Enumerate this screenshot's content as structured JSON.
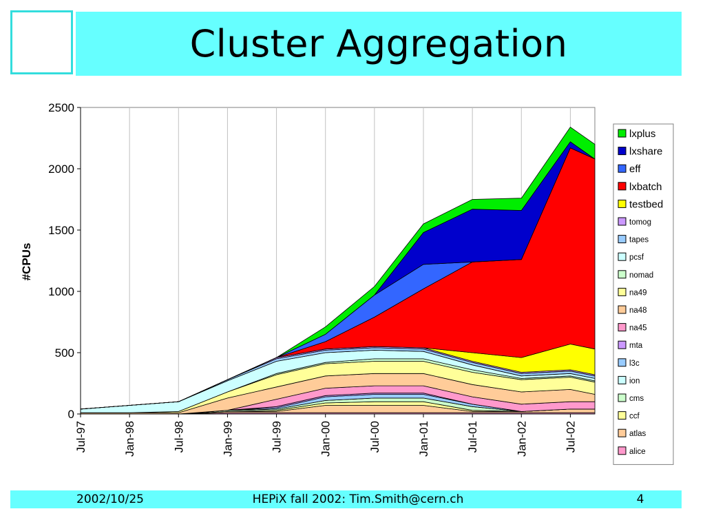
{
  "slide": {
    "title": "Cluster Aggregation",
    "footer_date": "2002/10/25",
    "footer_center": "HEPiX fall 2002: Tim.Smith@cern.ch",
    "page_number": "4"
  },
  "chart_data": {
    "type": "area",
    "stacked": true,
    "title": "",
    "xlabel": "",
    "ylabel": "#CPUs",
    "ylim": [
      0,
      2500
    ],
    "yticks": [
      0,
      500,
      1000,
      1500,
      2000,
      2500
    ],
    "xlim": [
      "1997-07",
      "2002-10"
    ],
    "xtick_labels": [
      "Jul-97",
      "Jan-98",
      "Jul-98",
      "Jan-99",
      "Jul-99",
      "Jan-00",
      "Jul-00",
      "Jan-01",
      "Jul-01",
      "Jan-02",
      "Jul-02"
    ],
    "grid": "vertical",
    "legend_position": "right",
    "x": [
      "1997-07",
      "1998-01",
      "1998-07",
      "1999-01",
      "1999-07",
      "2000-01",
      "2000-07",
      "2001-01",
      "2001-07",
      "2002-01",
      "2002-07",
      "2002-10"
    ],
    "series": [
      {
        "name": "alice",
        "color": "#ff99cc",
        "values": [
          0,
          0,
          0,
          10,
          10,
          10,
          10,
          10,
          10,
          10,
          10,
          10
        ]
      },
      {
        "name": "atlas",
        "color": "#ffcc99",
        "values": [
          0,
          0,
          0,
          10,
          10,
          60,
          60,
          60,
          10,
          10,
          30,
          30
        ]
      },
      {
        "name": "ccf",
        "color": "#ffff99",
        "values": [
          0,
          0,
          0,
          0,
          10,
          20,
          30,
          30,
          10,
          0,
          0,
          0
        ]
      },
      {
        "name": "cms",
        "color": "#ccffcc",
        "values": [
          0,
          0,
          0,
          10,
          10,
          20,
          30,
          30,
          30,
          0,
          0,
          0
        ]
      },
      {
        "name": "ion",
        "color": "#ccffff",
        "values": [
          0,
          0,
          0,
          0,
          0,
          0,
          0,
          0,
          0,
          0,
          0,
          0
        ]
      },
      {
        "name": "l3c",
        "color": "#99ccff",
        "values": [
          0,
          0,
          0,
          0,
          10,
          30,
          30,
          30,
          20,
          0,
          0,
          0
        ]
      },
      {
        "name": "mta",
        "color": "#cc99ff",
        "values": [
          0,
          0,
          0,
          0,
          10,
          10,
          10,
          10,
          0,
          0,
          0,
          0
        ]
      },
      {
        "name": "na45",
        "color": "#ff99cc",
        "values": [
          0,
          0,
          0,
          0,
          60,
          60,
          60,
          60,
          60,
          60,
          60,
          60
        ]
      },
      {
        "name": "na48",
        "color": "#ffcc99",
        "values": [
          10,
          10,
          10,
          100,
          100,
          100,
          100,
          100,
          100,
          100,
          100,
          60
        ]
      },
      {
        "name": "na49",
        "color": "#ffff99",
        "values": [
          0,
          0,
          10,
          50,
          100,
          100,
          100,
          100,
          100,
          100,
          100,
          100
        ]
      },
      {
        "name": "nomad",
        "color": "#ccffcc",
        "values": [
          0,
          0,
          0,
          0,
          10,
          10,
          20,
          20,
          20,
          10,
          10,
          10
        ]
      },
      {
        "name": "pcsf",
        "color": "#ccffff",
        "values": [
          30,
          60,
          80,
          90,
          100,
          80,
          70,
          60,
          40,
          20,
          20,
          20
        ]
      },
      {
        "name": "tapes",
        "color": "#99ccff",
        "values": [
          0,
          0,
          0,
          10,
          20,
          20,
          20,
          20,
          20,
          20,
          20,
          20
        ]
      },
      {
        "name": "tomog",
        "color": "#cc99ff",
        "values": [
          0,
          0,
          0,
          0,
          10,
          10,
          10,
          10,
          10,
          10,
          10,
          10
        ]
      },
      {
        "name": "testbed",
        "color": "#ffff00",
        "values": [
          0,
          0,
          0,
          0,
          0,
          0,
          0,
          0,
          70,
          120,
          210,
          210
        ]
      },
      {
        "name": "lxbatch",
        "color": "#ff0000",
        "values": [
          0,
          0,
          0,
          0,
          0,
          60,
          240,
          480,
          740,
          800,
          1600,
          1550
        ]
      },
      {
        "name": "eff",
        "color": "#3366ff",
        "values": [
          0,
          0,
          0,
          0,
          0,
          60,
          180,
          200,
          0,
          0,
          0,
          0
        ]
      },
      {
        "name": "lxshare",
        "color": "#0000cc",
        "values": [
          0,
          0,
          0,
          0,
          0,
          0,
          0,
          260,
          430,
          400,
          50,
          0
        ]
      },
      {
        "name": "lxplus",
        "color": "#00ee00",
        "values": [
          0,
          0,
          0,
          0,
          0,
          60,
          70,
          70,
          80,
          100,
          120,
          120
        ]
      }
    ],
    "legend_order": [
      "lxplus",
      "lxshare",
      "eff",
      "lxbatch",
      "testbed",
      "tomog",
      "tapes",
      "pcsf",
      "nomad",
      "na49",
      "na48",
      "na45",
      "mta",
      "l3c",
      "ion",
      "cms",
      "ccf",
      "atlas",
      "alice"
    ]
  }
}
